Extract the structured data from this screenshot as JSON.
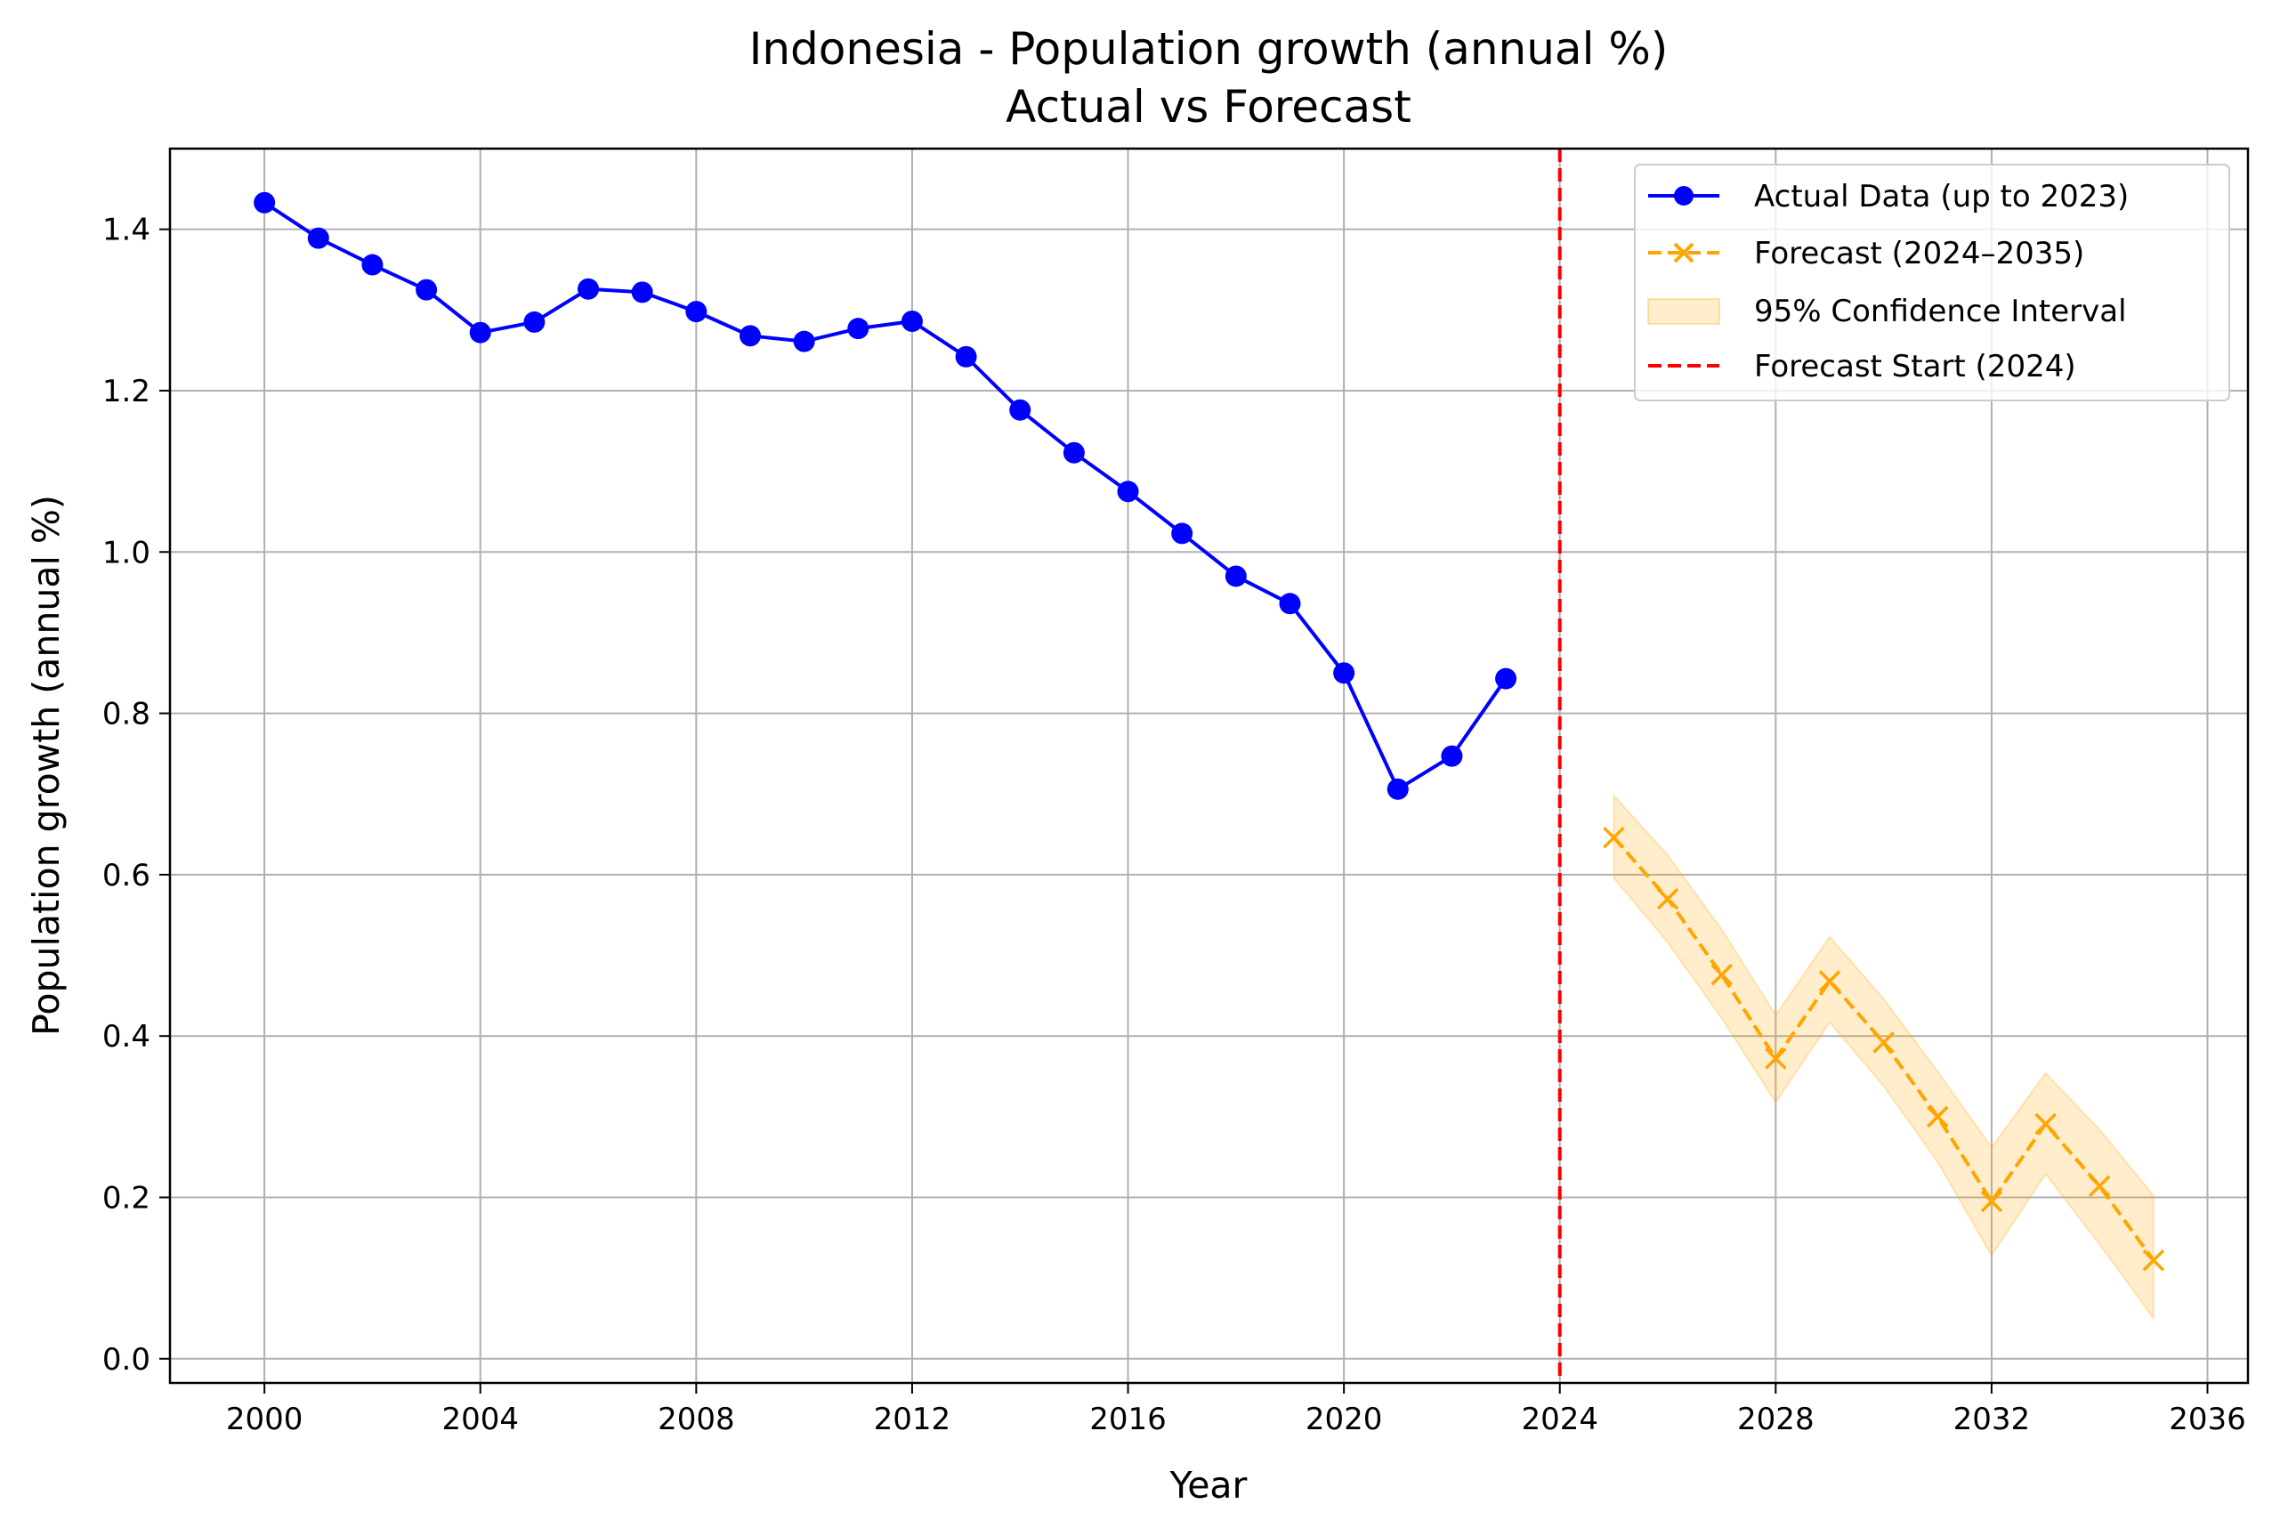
{
  "chart_data": {
    "type": "line",
    "title": "Indonesia - Population growth (annual %)",
    "subtitle": "Actual vs Forecast",
    "xlabel": "Year",
    "ylabel": "Population growth (annual %)",
    "xlim": [
      1998.25,
      2036.75
    ],
    "ylim": [
      -0.03,
      1.5
    ],
    "xticks": [
      2000,
      2004,
      2008,
      2012,
      2016,
      2020,
      2024,
      2028,
      2032,
      2036
    ],
    "yticks": [
      0.0,
      0.2,
      0.4,
      0.6,
      0.8,
      1.0,
      1.2,
      1.4
    ],
    "ytick_labels": [
      "0.0",
      "0.2",
      "0.4",
      "0.6",
      "0.8",
      "1.0",
      "1.2",
      "1.4"
    ],
    "grid": true,
    "legend_position": "top-right",
    "colors": {
      "actual": "#0000ff",
      "forecast": "#ffa500",
      "ci_fill": "#ffa500",
      "forecast_start": "#ff0000",
      "grid": "#b0b0b0"
    },
    "series": [
      {
        "name": "Actual Data (up to 2023)",
        "style": "solid line with circle markers",
        "x": [
          2000,
          2001,
          2002,
          2003,
          2004,
          2005,
          2006,
          2007,
          2008,
          2009,
          2010,
          2011,
          2012,
          2013,
          2014,
          2015,
          2016,
          2017,
          2018,
          2019,
          2020,
          2021,
          2022,
          2023
        ],
        "y": [
          1.433,
          1.389,
          1.356,
          1.325,
          1.272,
          1.285,
          1.326,
          1.322,
          1.298,
          1.268,
          1.261,
          1.277,
          1.286,
          1.242,
          1.176,
          1.123,
          1.075,
          1.023,
          0.97,
          0.936,
          0.85,
          0.706,
          0.747,
          0.843
        ]
      },
      {
        "name": "Forecast (2024–2035)",
        "style": "dashed line with x markers",
        "x": [
          2025,
          2026,
          2027,
          2028,
          2029,
          2030,
          2031,
          2032,
          2033,
          2034,
          2035
        ],
        "y": [
          0.646,
          0.57,
          0.476,
          0.372,
          0.468,
          0.392,
          0.3,
          0.195,
          0.291,
          0.214,
          0.122
        ]
      },
      {
        "name": "95% Confidence Interval",
        "style": "shaded band",
        "x": [
          2025,
          2026,
          2027,
          2028,
          2029,
          2030,
          2031,
          2032,
          2033,
          2034,
          2035
        ],
        "lower": [
          0.596,
          0.516,
          0.422,
          0.318,
          0.417,
          0.338,
          0.244,
          0.128,
          0.229,
          0.142,
          0.05
        ],
        "upper": [
          0.698,
          0.624,
          0.532,
          0.426,
          0.523,
          0.446,
          0.356,
          0.262,
          0.354,
          0.284,
          0.202
        ]
      },
      {
        "name": "Forecast Start (2024)",
        "style": "dashed vertical line",
        "x": 2024
      }
    ]
  }
}
